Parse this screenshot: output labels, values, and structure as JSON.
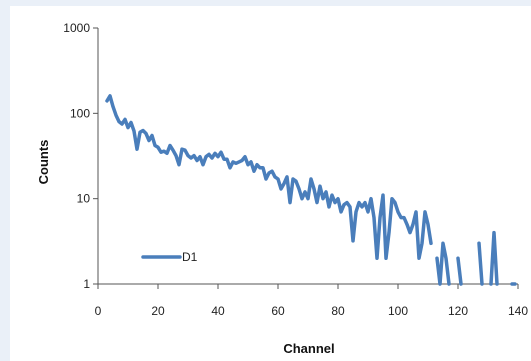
{
  "chart_data": {
    "type": "line",
    "title": "",
    "xlabel": "Channel",
    "ylabel": "Counts",
    "xlim": [
      0,
      140
    ],
    "ylim": [
      1,
      1000
    ],
    "y_scale": "log",
    "x_ticks": [
      0,
      20,
      40,
      60,
      80,
      100,
      120,
      140
    ],
    "y_ticks": [
      1,
      10,
      100,
      1000
    ],
    "x_tick_labels": [
      "0",
      "20",
      "40",
      "60",
      "80",
      "100",
      "120",
      "140"
    ],
    "y_tick_labels": [
      "1",
      "10",
      "100",
      "1000"
    ],
    "grid": false,
    "legend_position": "bottom-left",
    "series": [
      {
        "name": "D1",
        "color": "#4a7ebb",
        "points": [
          [
            3,
            140
          ],
          [
            4,
            160
          ],
          [
            5,
            120
          ],
          [
            6,
            95
          ],
          [
            7,
            80
          ],
          [
            8,
            75
          ],
          [
            9,
            85
          ],
          [
            10,
            68
          ],
          [
            11,
            78
          ],
          [
            12,
            62
          ],
          [
            13,
            38
          ],
          [
            14,
            60
          ],
          [
            15,
            63
          ],
          [
            16,
            58
          ],
          [
            17,
            48
          ],
          [
            18,
            55
          ],
          [
            19,
            42
          ],
          [
            20,
            40
          ],
          [
            21,
            35
          ],
          [
            22,
            36
          ],
          [
            23,
            34
          ],
          [
            24,
            42
          ],
          [
            25,
            37
          ],
          [
            26,
            32
          ],
          [
            27,
            25
          ],
          [
            28,
            38
          ],
          [
            29,
            37
          ],
          [
            30,
            32
          ],
          [
            31,
            30
          ],
          [
            32,
            32
          ],
          [
            33,
            28
          ],
          [
            34,
            31
          ],
          [
            35,
            25
          ],
          [
            36,
            31
          ],
          [
            37,
            33
          ],
          [
            38,
            30
          ],
          [
            39,
            34
          ],
          [
            40,
            31
          ],
          [
            41,
            35
          ],
          [
            42,
            29
          ],
          [
            43,
            29
          ],
          [
            44,
            23
          ],
          [
            45,
            27
          ],
          [
            46,
            26
          ],
          [
            47,
            27
          ],
          [
            48,
            28
          ],
          [
            49,
            31
          ],
          [
            50,
            25
          ],
          [
            51,
            27
          ],
          [
            52,
            21
          ],
          [
            53,
            25
          ],
          [
            54,
            23
          ],
          [
            55,
            23
          ],
          [
            56,
            17
          ],
          [
            57,
            20
          ],
          [
            58,
            21
          ],
          [
            59,
            18
          ],
          [
            60,
            17
          ],
          [
            61,
            13
          ],
          [
            62,
            15
          ],
          [
            63,
            18
          ],
          [
            64,
            9
          ],
          [
            65,
            17
          ],
          [
            66,
            16
          ],
          [
            67,
            13
          ],
          [
            68,
            10
          ],
          [
            69,
            12
          ],
          [
            70,
            10
          ],
          [
            71,
            17
          ],
          [
            72,
            13
          ],
          [
            73,
            9
          ],
          [
            74,
            14
          ],
          [
            75,
            10
          ],
          [
            76,
            12
          ],
          [
            77,
            8
          ],
          [
            78,
            11
          ],
          [
            79,
            9
          ],
          [
            80,
            10
          ],
          [
            81,
            7
          ],
          [
            82,
            8.5
          ],
          [
            83,
            9
          ],
          [
            84,
            8
          ],
          [
            85,
            3.2
          ],
          [
            86,
            7
          ],
          [
            87,
            9
          ],
          [
            88,
            8
          ],
          [
            89,
            9
          ],
          [
            90,
            7
          ],
          [
            91,
            10
          ],
          [
            92,
            6
          ],
          [
            93,
            2
          ],
          [
            94,
            6
          ],
          [
            95,
            11
          ],
          [
            96,
            2
          ],
          [
            97,
            4
          ],
          [
            98,
            10
          ],
          [
            99,
            9
          ],
          [
            100,
            7
          ],
          [
            101,
            6
          ],
          [
            102,
            6
          ],
          [
            103,
            5
          ],
          [
            104,
            4
          ],
          [
            105,
            5
          ],
          [
            106,
            7
          ],
          [
            107,
            2
          ],
          [
            108,
            3
          ],
          [
            109,
            7
          ],
          [
            110,
            5
          ],
          [
            111,
            3
          ],
          [
            112,
            null
          ],
          [
            113,
            2
          ],
          [
            114,
            1
          ],
          [
            115,
            3
          ],
          [
            116,
            2
          ],
          [
            117,
            1
          ],
          [
            118,
            null
          ],
          [
            119,
            null
          ],
          [
            120,
            2
          ],
          [
            121,
            1
          ],
          [
            122,
            null
          ],
          [
            123,
            null
          ],
          [
            124,
            null
          ],
          [
            125,
            null
          ],
          [
            126,
            null
          ],
          [
            127,
            3
          ],
          [
            128,
            1
          ],
          [
            129,
            null
          ],
          [
            130,
            null
          ],
          [
            131,
            1
          ],
          [
            132,
            4
          ],
          [
            133,
            1
          ],
          [
            134,
            null
          ],
          [
            135,
            null
          ],
          [
            136,
            null
          ],
          [
            137,
            null
          ],
          [
            138,
            1
          ],
          [
            139,
            1
          ]
        ]
      }
    ]
  }
}
